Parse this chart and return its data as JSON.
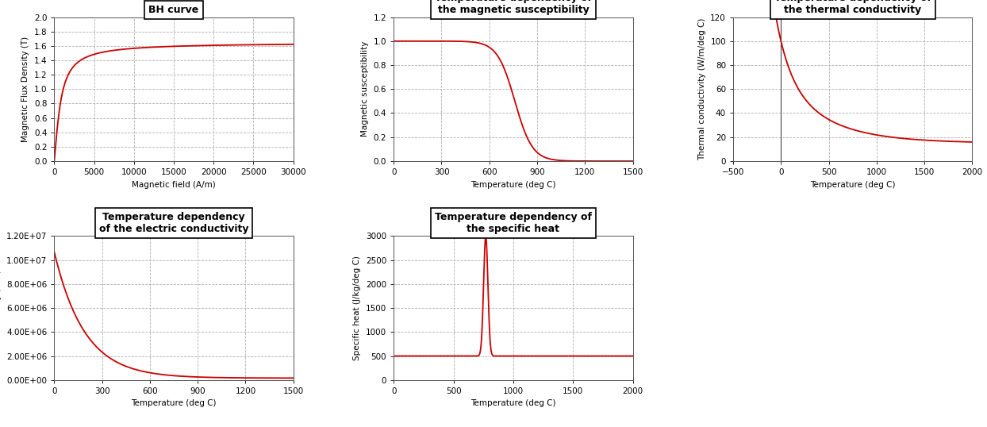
{
  "bh_curve": {
    "title": "BH curve",
    "xlabel": "Magnetic field (A/m)",
    "ylabel": "Magnetic Flux Density (T)",
    "xlim": [
      0,
      30000
    ],
    "ylim": [
      0.0,
      2.0
    ],
    "xticks": [
      0,
      5000,
      10000,
      15000,
      20000,
      25000,
      30000
    ],
    "yticks": [
      0.0,
      0.2,
      0.4,
      0.6,
      0.8,
      1.0,
      1.2,
      1.4,
      1.6,
      1.8,
      2.0
    ]
  },
  "mag_sus": {
    "title": "Temperature dependency of\nthe magnetic susceptibility",
    "xlabel": "Temperature (deg C)",
    "ylabel": "Magnetic susceptibility",
    "xlim": [
      0,
      1500
    ],
    "ylim": [
      0.0,
      1.2
    ],
    "xticks": [
      0,
      300,
      600,
      900,
      1200,
      1500
    ],
    "yticks": [
      0.0,
      0.2,
      0.4,
      0.6,
      0.8,
      1.0,
      1.2
    ]
  },
  "thermal_cond": {
    "title": "Temperature dependency of\nthe thermal conductivity",
    "xlabel": "Temperature (deg C)",
    "ylabel": "Thermal conductivity (W/m/deg C)",
    "xlim": [
      -500,
      2000
    ],
    "ylim": [
      0,
      120
    ],
    "xticks": [
      -500,
      0,
      500,
      1000,
      1500,
      2000
    ],
    "yticks": [
      0,
      20,
      40,
      60,
      80,
      100,
      120
    ]
  },
  "elec_cond": {
    "title": "Temperature dependency\nof the electric conductivity",
    "xlabel": "Temperature (deg C)",
    "ylabel": "Conductivity (S/m)",
    "xlim": [
      0,
      1500
    ],
    "ylim": [
      0,
      12000000.0
    ],
    "xticks": [
      0,
      300,
      600,
      900,
      1200,
      1500
    ],
    "yticks": [
      0.0,
      2000000.0,
      4000000.0,
      6000000.0,
      8000000.0,
      10000000.0,
      12000000.0
    ]
  },
  "spec_heat": {
    "title": "Temperature dependency of\nthe specific heat",
    "xlabel": "Temperature (deg C)",
    "ylabel": "Specific heat (J/kg/deg C)",
    "xlim": [
      0,
      2000
    ],
    "ylim": [
      0,
      3000
    ],
    "xticks": [
      0,
      500,
      1000,
      1500,
      2000
    ],
    "yticks": [
      0,
      500,
      1000,
      1500,
      2000,
      2500,
      3000
    ]
  },
  "line_color": "#cc0000",
  "grid_color": "#b0b0b0",
  "bg_color": "#ffffff",
  "title_fontsize": 9,
  "label_fontsize": 7.5,
  "tick_fontsize": 7.5
}
